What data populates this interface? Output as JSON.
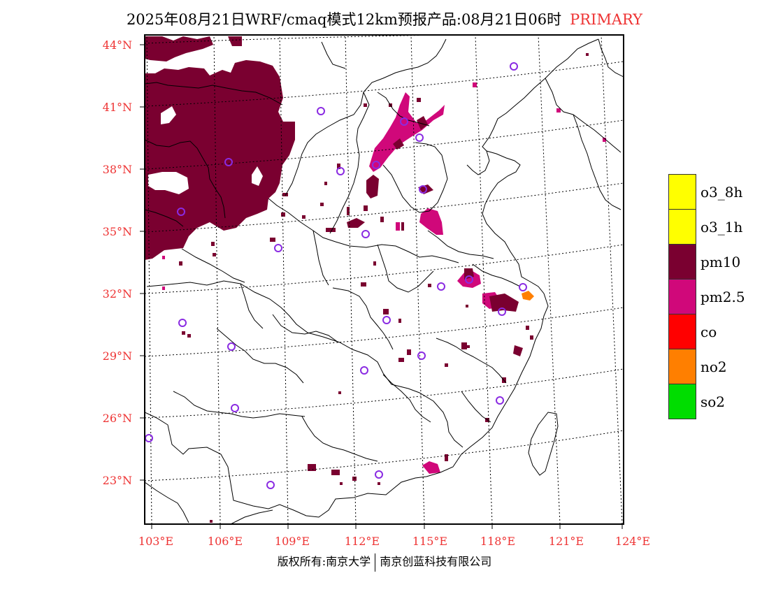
{
  "title": {
    "main": "2025年08月21日WRF/cmaq模式12km预报产品:08月21日06时",
    "type": "PRIMARY"
  },
  "lat_labels": [
    "44°N",
    "41°N",
    "38°N",
    "35°N",
    "32°N",
    "29°N",
    "26°N",
    "23°N"
  ],
  "lon_labels": [
    "103°E",
    "106°E",
    "109°E",
    "112°E",
    "115°E",
    "118°E",
    "121°E",
    "124°E"
  ],
  "legend": [
    {
      "label": "o3_8h",
      "color": "#ffff00"
    },
    {
      "label": "o3_1h",
      "color": "#ffff00"
    },
    {
      "label": "pm10",
      "color": "#7a0030"
    },
    {
      "label": "pm2.5",
      "color": "#d0087a"
    },
    {
      "label": "co",
      "color": "#ff0000"
    },
    {
      "label": "no2",
      "color": "#ff7f00"
    },
    {
      "label": "so2",
      "color": "#00dd00"
    }
  ],
  "footer": {
    "left": "版权所有:南京大学",
    "right": "南京创蓝科技有限公司"
  },
  "colors": {
    "pm10": "#7a0030",
    "pm25": "#d0087a",
    "no2": "#ff7f00",
    "axis_label": "#e33333",
    "station_marker": "#8a2be2"
  }
}
